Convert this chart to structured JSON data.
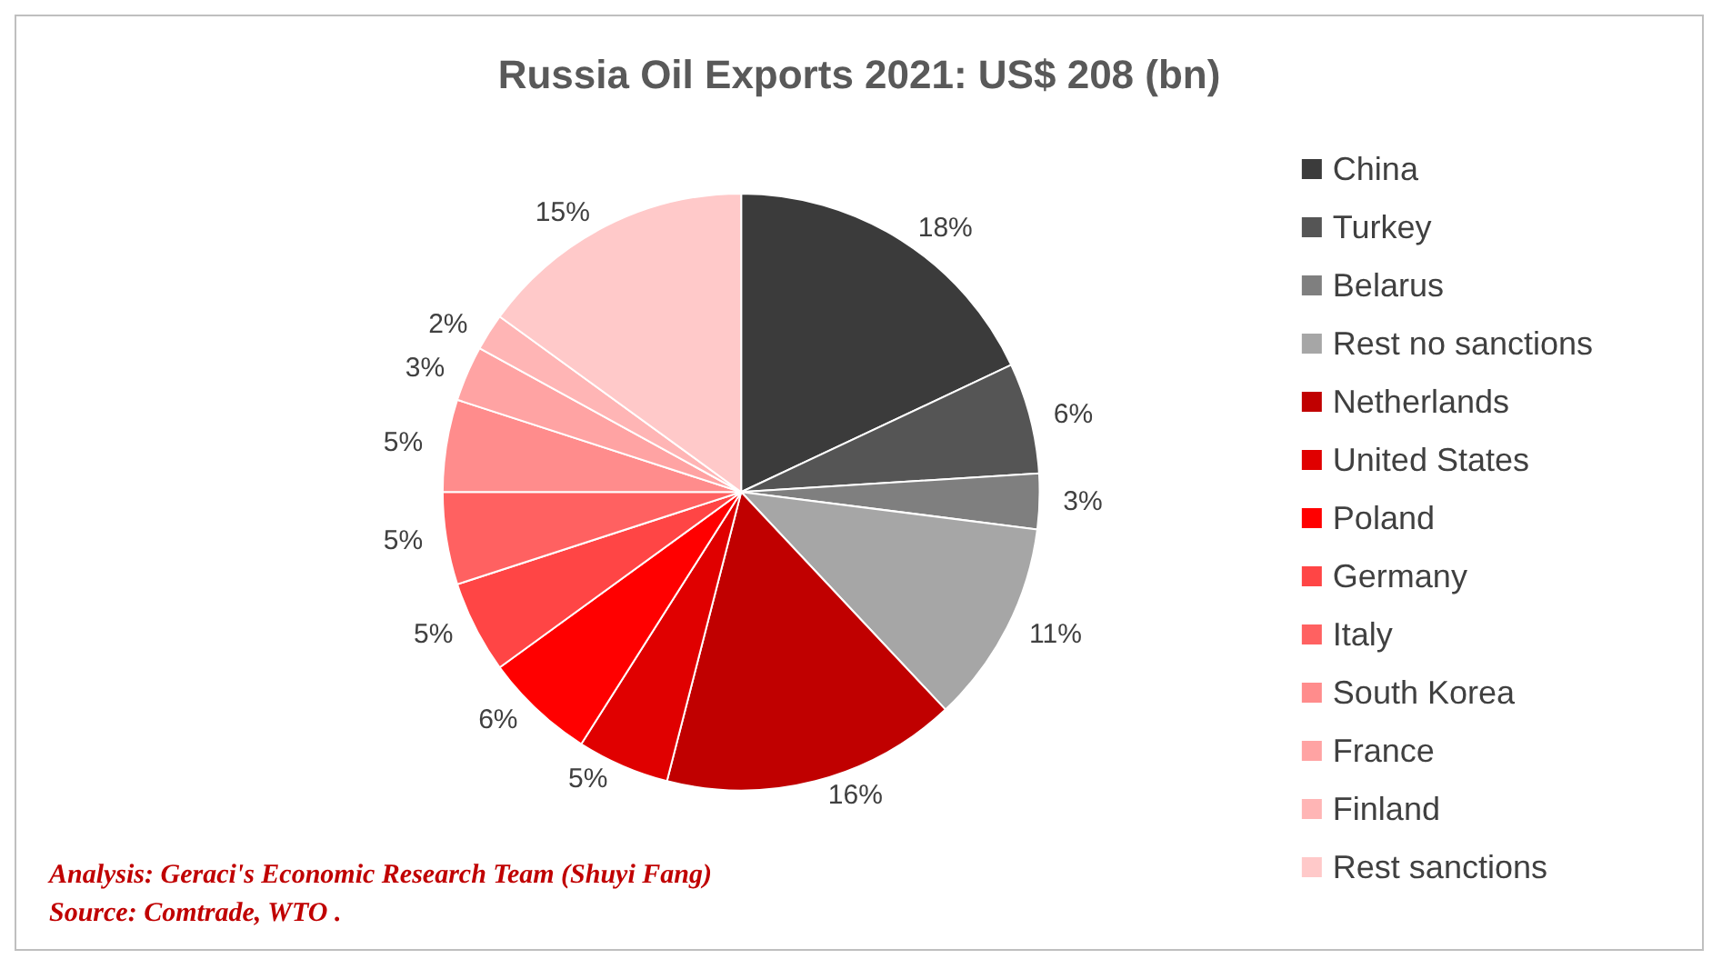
{
  "chart_data": {
    "type": "pie",
    "title": "Russia Oil Exports 2021: US$ 208 (bn)",
    "categories": [
      "China",
      "Turkey",
      "Belarus",
      "Rest no sanctions",
      "Netherlands",
      "United States",
      "Poland",
      "Germany",
      "Italy",
      "South Korea",
      "France",
      "Finland",
      "Rest sanctions"
    ],
    "values": [
      18,
      6,
      3,
      11,
      16,
      5,
      6,
      5,
      5,
      5,
      3,
      2,
      15
    ],
    "colors": [
      "#3b3b3b",
      "#555555",
      "#7f7f7f",
      "#a6a6a6",
      "#c00000",
      "#e00000",
      "#ff0000",
      "#ff4545",
      "#ff6161",
      "#ff8c8c",
      "#ffa3a3",
      "#ffb5b5",
      "#ffc9c9"
    ],
    "value_labels": [
      "18%",
      "6%",
      "3%",
      "11%",
      "16%",
      "5%",
      "6%",
      "5%",
      "5%",
      "5%",
      "3%",
      "2%",
      "15%"
    ],
    "legend": "right",
    "annotations": [
      "Analysis: Geraci's Economic Research Team (Shuyi Fang)",
      "Source: Comtrade, WTO ."
    ]
  }
}
